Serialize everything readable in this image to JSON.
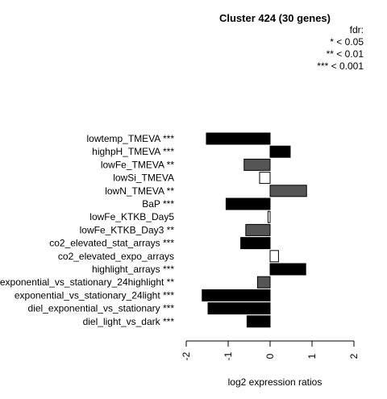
{
  "chart_data": {
    "type": "bar",
    "orientation": "horizontal",
    "title": "Cluster 424 (30 genes)",
    "xlabel": "log2 expression ratios",
    "ylabel": "",
    "xlim": [
      -2,
      2
    ],
    "xticks": [
      -2,
      -1,
      0,
      1,
      2
    ],
    "xtick_labels": [
      "-2",
      "-1",
      "0",
      "1",
      "2"
    ],
    "legend": {
      "title": "fdr:",
      "entries": [
        "* < 0.05",
        "** < 0.01",
        "*** < 0.001"
      ],
      "placement": "top-right"
    },
    "categories": [
      "lowtemp_TMEVA ***",
      "highpH_TMEVA ***",
      "lowFe_TMEVA **",
      "lowSi_TMEVA",
      "lowN_TMEVA **",
      "BaP ***",
      "lowFe_KTKB_Day5",
      "lowFe_KTKB_Day3 **",
      "co2_elevated_stat_arrays ***",
      "co2_elevated_expo_arrays",
      "highlight_arrays ***",
      "exponential_vs_stationary_24highlight **",
      "exponential_vs_stationary_24light ***",
      "diel_exponential_vs_stationary ***",
      "diel_light_vs_dark ***"
    ],
    "values": [
      -1.52,
      0.48,
      -0.62,
      -0.25,
      0.87,
      -1.05,
      -0.05,
      -0.58,
      -0.7,
      0.2,
      0.85,
      -0.3,
      -1.62,
      -1.48,
      -0.55
    ],
    "significance": [
      "***",
      "***",
      "**",
      "",
      "**",
      "***",
      "",
      "**",
      "***",
      "",
      "***",
      "**",
      "***",
      "***",
      "***"
    ],
    "colors": {
      "***": "#000000",
      "**": "#555555",
      "*": "#aaaaaa",
      "": "#ffffff"
    },
    "bar_stroke": "#000000"
  }
}
